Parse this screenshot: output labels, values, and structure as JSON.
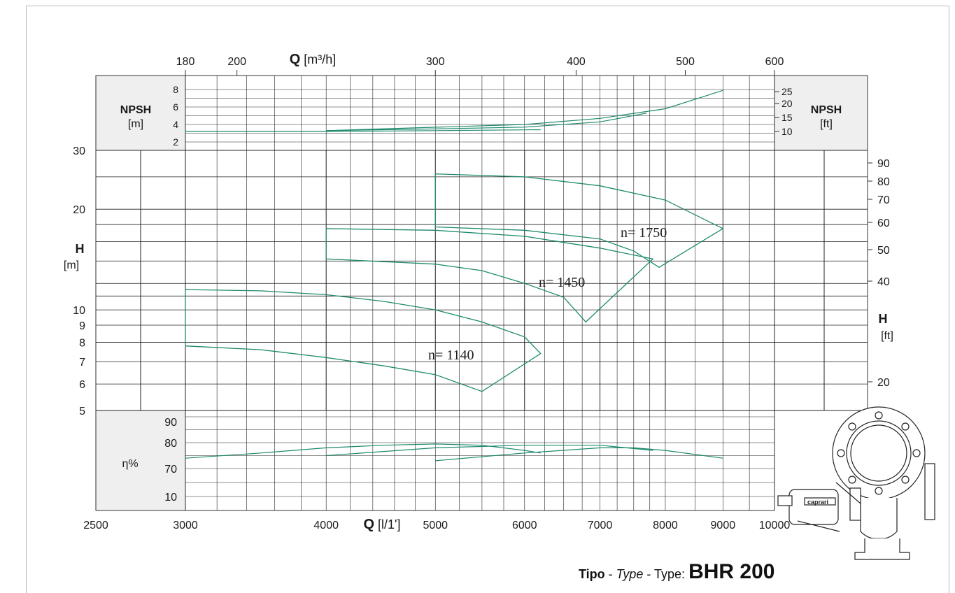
{
  "colors": {
    "curve": "#1f8a6e",
    "panel": "#efefef",
    "grid": "#222222"
  },
  "footer": {
    "tipo": "Tipo",
    "sep1": " - ",
    "type_it": "Type",
    "sep2": " - Type: ",
    "model": "BHR 200"
  },
  "pump_image": {
    "icon": "caprari-pump-drawing-icon",
    "brand": "caprari"
  },
  "chart_data": {
    "type": "line",
    "top_axis": {
      "label_bold": "Q",
      "label_unit": "[m³/h]",
      "ticks": [
        "180",
        "200",
        "300",
        "400",
        "500",
        "600"
      ],
      "tick_values": [
        180,
        200,
        300,
        400,
        500,
        600
      ]
    },
    "bottom_axis": {
      "label_bold": "Q",
      "label_unit": "[l/1']",
      "ticks": [
        "2500",
        "3000",
        "4000",
        "5000",
        "6000",
        "7000",
        "8000",
        "9000",
        "10000"
      ],
      "tick_values": [
        2500,
        3000,
        4000,
        5000,
        6000,
        7000,
        8000,
        9000,
        10000
      ],
      "scale": "log",
      "xlim": [
        2500,
        10000
      ]
    },
    "head_axis_m": {
      "label": "H",
      "unit": "[m]",
      "ticks": [
        "30",
        "20",
        "10",
        "9",
        "8",
        "7",
        "6",
        "5"
      ],
      "tick_values": [
        30,
        20,
        10,
        9,
        8,
        7,
        6,
        5
      ],
      "scale": "log",
      "ylim": [
        5,
        30
      ]
    },
    "head_axis_ft": {
      "label": "H",
      "unit": "[ft]",
      "ticks": [
        "90",
        "80",
        "70",
        "60",
        "50",
        "40",
        "20"
      ],
      "tick_values": [
        90,
        80,
        70,
        60,
        50,
        40,
        20
      ]
    },
    "npsh_m": {
      "label": "NPSH",
      "unit": "[m]",
      "ticks": [
        "8",
        "6",
        "4",
        "2"
      ],
      "tick_values": [
        8,
        6,
        4,
        2
      ]
    },
    "npsh_ft": {
      "label": "NPSH",
      "unit": "[ft]",
      "ticks": [
        "25",
        "20",
        "15",
        "10"
      ],
      "tick_values": [
        25,
        20,
        15,
        10
      ]
    },
    "efficiency": {
      "label": "η%",
      "ticks": [
        "90",
        "80",
        "70",
        "10"
      ]
    },
    "series": [
      {
        "name": "n= 1140",
        "head_upper": [
          [
            3000,
            11.5
          ],
          [
            3500,
            11.4
          ],
          [
            4000,
            11.1
          ],
          [
            4500,
            10.6
          ],
          [
            5000,
            10.0
          ],
          [
            5500,
            9.2
          ],
          [
            6000,
            8.3
          ],
          [
            6200,
            7.4
          ]
        ],
        "head_lower": [
          [
            3000,
            7.8
          ],
          [
            3500,
            7.6
          ],
          [
            4000,
            7.2
          ],
          [
            4500,
            6.8
          ],
          [
            5000,
            6.4
          ],
          [
            5500,
            5.7
          ]
        ],
        "efficiency": [
          [
            3000,
            74
          ],
          [
            3500,
            76
          ],
          [
            4000,
            78
          ],
          [
            4500,
            79
          ],
          [
            5000,
            79.5
          ],
          [
            5500,
            79
          ],
          [
            6000,
            77
          ],
          [
            6200,
            76
          ]
        ],
        "npsh": [
          [
            3000,
            3.2
          ],
          [
            4000,
            3.2
          ],
          [
            5000,
            3.3
          ],
          [
            6200,
            3.4
          ]
        ]
      },
      {
        "name": "n= 1450",
        "head_upper": [
          [
            4000,
            17.5
          ],
          [
            5000,
            17.3
          ],
          [
            6000,
            16.6
          ],
          [
            7000,
            15.3
          ],
          [
            7800,
            14.2
          ]
        ],
        "head_lower": [
          [
            4000,
            14.2
          ],
          [
            5000,
            13.7
          ],
          [
            5500,
            13.1
          ],
          [
            6000,
            12.0
          ],
          [
            6500,
            10.9
          ],
          [
            6800,
            9.2
          ]
        ],
        "efficiency": [
          [
            4000,
            75
          ],
          [
            5000,
            78
          ],
          [
            6000,
            79
          ],
          [
            7000,
            79
          ],
          [
            7800,
            77
          ]
        ],
        "npsh": [
          [
            4000,
            3.3
          ],
          [
            5000,
            3.5
          ],
          [
            6000,
            3.7
          ],
          [
            7000,
            4.3
          ],
          [
            7700,
            5.3
          ]
        ]
      },
      {
        "name": "n= 1750",
        "head_upper": [
          [
            5000,
            25.5
          ],
          [
            6000,
            25.0
          ],
          [
            7000,
            23.5
          ],
          [
            8000,
            21.3
          ],
          [
            9000,
            17.5
          ]
        ],
        "head_lower": [
          [
            5000,
            17.7
          ],
          [
            6000,
            17.3
          ],
          [
            7000,
            16.3
          ],
          [
            7500,
            15.0
          ],
          [
            7900,
            13.4
          ]
        ],
        "efficiency": [
          [
            5000,
            73
          ],
          [
            6000,
            76
          ],
          [
            7000,
            78
          ],
          [
            7500,
            78
          ],
          [
            8000,
            77
          ],
          [
            9000,
            74
          ]
        ],
        "npsh": [
          [
            4000,
            3.3
          ],
          [
            6000,
            4.0
          ],
          [
            7000,
            4.7
          ],
          [
            8000,
            5.8
          ],
          [
            9000,
            7.9
          ]
        ]
      }
    ]
  }
}
